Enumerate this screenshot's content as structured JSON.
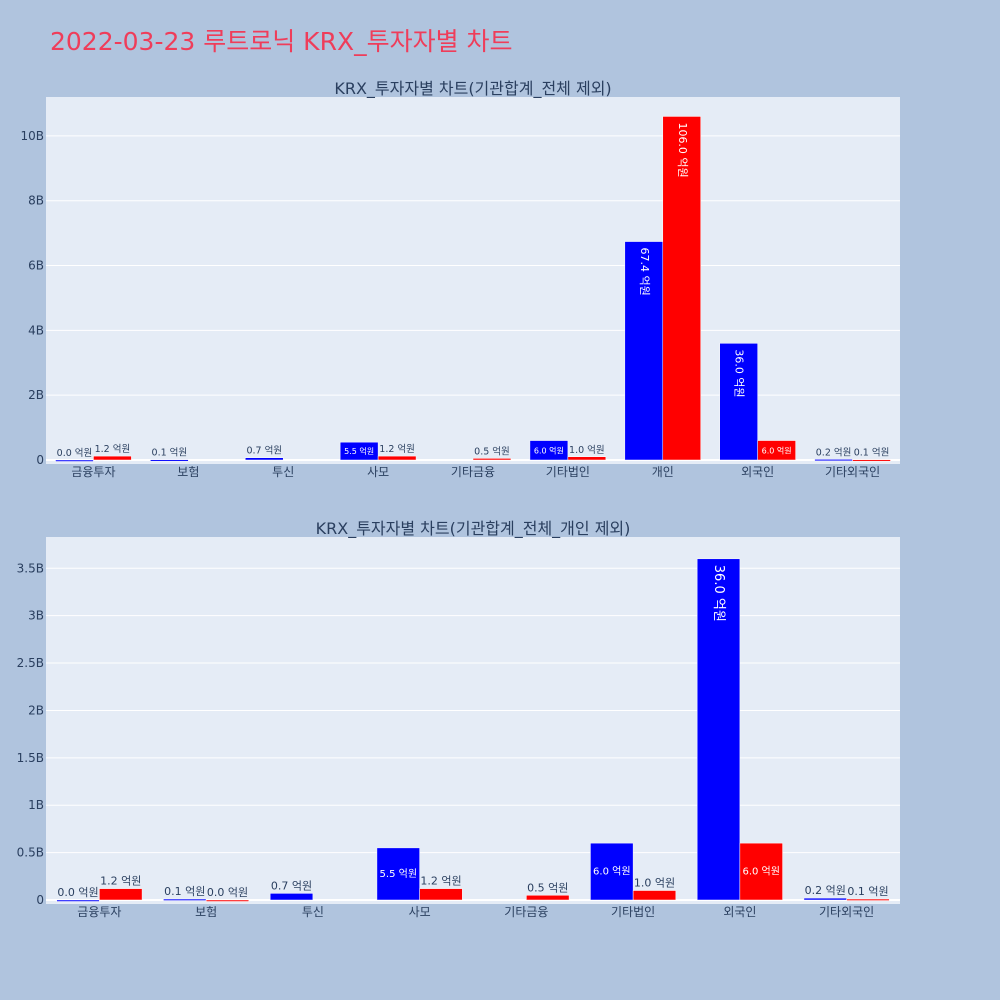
{
  "page_title": "2022-03-23 루트로닉 KRX_투자자별 차트",
  "colors": {
    "buy": "#0000ff",
    "sell": "#ff0000",
    "plot_bg": "#e5ecf6",
    "page_bg": "#b0c4de",
    "title": "#ef3d5a"
  },
  "chart_data": [
    {
      "type": "bar",
      "title": "KRX_투자자별 차트(기관합계_전체 제외)",
      "categories": [
        "금융투자",
        "보험",
        "투신",
        "사모",
        "기타금융",
        "기타법인",
        "개인",
        "외국인",
        "기타외국인"
      ],
      "series": [
        {
          "color": "#0000ff",
          "values": [
            0.0,
            0.1,
            0.7,
            5.5,
            null,
            6.0,
            67.4,
            36.0,
            0.2
          ],
          "labels": [
            "0.0 억원",
            "0.1 억원",
            "0.7 억원",
            "5.5 억원",
            "",
            "6.0 억원",
            "67.4 억원",
            "36.0 억원",
            "0.2 억원"
          ]
        },
        {
          "color": "#ff0000",
          "values": [
            1.2,
            null,
            null,
            1.2,
            0.5,
            1.0,
            106.0,
            6.0,
            0.1
          ],
          "labels": [
            "1.2 억원",
            "",
            "",
            "1.2 억원",
            "0.5 억원",
            "1.0 억원",
            "106.0 억원",
            "6.0 억원",
            "0.1 억원"
          ]
        }
      ],
      "value_scale": 100000000,
      "yticks": [
        0,
        2000000000,
        4000000000,
        6000000000,
        8000000000,
        10000000000
      ],
      "ytick_labels": [
        "0",
        "2B",
        "4B",
        "6B",
        "8B",
        "10B"
      ],
      "ylim": [
        0,
        11200000000
      ],
      "grid": true
    },
    {
      "type": "bar",
      "title": "KRX_투자자별 차트(기관합계_전체_개인 제외)",
      "categories": [
        "금융투자",
        "보험",
        "투신",
        "사모",
        "기타금융",
        "기타법인",
        "외국인",
        "기타외국인"
      ],
      "series": [
        {
          "color": "#0000ff",
          "values": [
            0.0,
            0.1,
            0.7,
            5.5,
            null,
            6.0,
            36.0,
            0.2
          ],
          "labels": [
            "0.0 억원",
            "0.1 억원",
            "0.7 억원",
            "5.5 억원",
            "",
            "6.0 억원",
            "36.0 억원",
            "0.2 억원"
          ]
        },
        {
          "color": "#ff0000",
          "values": [
            1.2,
            0.0,
            null,
            1.2,
            0.5,
            1.0,
            6.0,
            0.1
          ],
          "labels": [
            "1.2 억원",
            "0.0 억원",
            "",
            "1.2 억원",
            "0.5 억원",
            "1.0 억원",
            "6.0 억원",
            "0.1 억원"
          ]
        }
      ],
      "value_scale": 100000000,
      "yticks": [
        0,
        500000000,
        1000000000,
        1500000000,
        2000000000,
        2500000000,
        3000000000,
        3500000000
      ],
      "ytick_labels": [
        "0",
        "0.5B",
        "1B",
        "1.5B",
        "2B",
        "2.5B",
        "3B",
        "3.5B"
      ],
      "ylim": [
        0,
        3830000000
      ],
      "grid": true
    }
  ]
}
